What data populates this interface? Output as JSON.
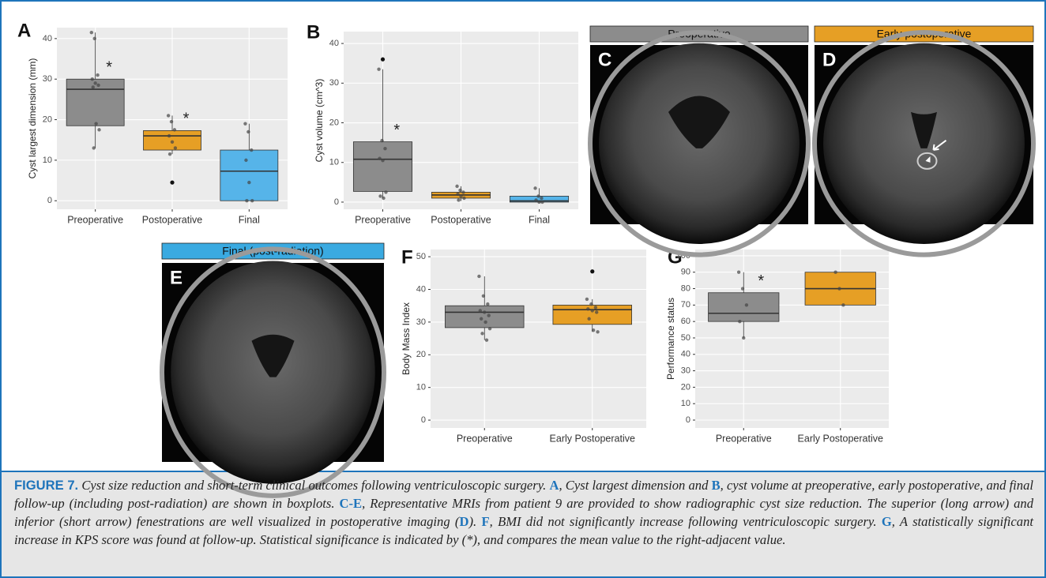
{
  "chart_data": [
    {
      "type": "box",
      "panel": "A",
      "ylabel": "Cyst largest dimension (mm)",
      "categories": [
        "Preoperative",
        "Postoperative",
        "Final"
      ],
      "boxes": [
        {
          "color": "#8c8c8c",
          "min": 13,
          "q1": 18.5,
          "median": 27.5,
          "q3": 30,
          "max": 41.5,
          "outliers": [],
          "points": [
            41.5,
            40,
            31,
            30,
            29,
            28.5,
            28,
            19,
            17.5,
            13
          ]
        },
        {
          "color": "#e69f25",
          "min": 11.5,
          "q1": 12.5,
          "median": 16,
          "q3": 17.3,
          "max": 21,
          "outliers": [
            4.5
          ],
          "points": [
            21,
            19.5,
            17.5,
            16,
            14.5,
            13,
            11.5
          ]
        },
        {
          "color": "#56b4e9",
          "min": 0,
          "q1": 0,
          "median": 7.3,
          "q3": 12.5,
          "max": 19,
          "outliers": [],
          "points": [
            19,
            17,
            12.5,
            10,
            4.5,
            0,
            0
          ]
        }
      ],
      "annotations": [
        "*",
        "*",
        null
      ],
      "ylim": [
        -2.1,
        42.7
      ],
      "yticks": [
        0,
        10,
        20,
        30,
        40
      ],
      "grid": true
    },
    {
      "type": "box",
      "panel": "B",
      "ylabel": "Cyst volume (cm^3)",
      "categories": [
        "Preoperative",
        "Postoperative",
        "Final"
      ],
      "boxes": [
        {
          "color": "#8c8c8c",
          "min": 1,
          "q1": 2.7,
          "median": 10.8,
          "q3": 15.2,
          "max": 33.5,
          "outliers": [
            36
          ],
          "points": [
            33.5,
            15.5,
            13.5,
            11,
            10.5,
            2.5,
            1.5,
            1
          ]
        },
        {
          "color": "#e69f25",
          "min": 0.3,
          "q1": 1,
          "median": 1.8,
          "q3": 2.5,
          "max": 4,
          "outliers": [],
          "points": [
            4,
            3,
            2.5,
            2,
            1.5,
            1,
            0.5
          ]
        },
        {
          "color": "#56b4e9",
          "min": 0,
          "q1": 0,
          "median": 0.3,
          "q3": 1.5,
          "max": 3.5,
          "outliers": [],
          "points": [
            3.5,
            1.5,
            1,
            0.5,
            0,
            0
          ]
        }
      ],
      "annotations": [
        "*",
        null,
        null
      ],
      "ylim": [
        -1.8,
        43
      ],
      "yticks": [
        0,
        10,
        20,
        30,
        40
      ],
      "grid": true
    },
    {
      "type": "box",
      "panel": "F",
      "ylabel": "Body Mass Index",
      "categories": [
        "Preoperative",
        "Early Postoperative"
      ],
      "boxes": [
        {
          "color": "#8c8c8c",
          "min": 24.5,
          "q1": 28.3,
          "median": 33,
          "q3": 35,
          "max": 44,
          "outliers": [],
          "points": [
            44,
            38,
            35.5,
            33.5,
            33,
            32,
            31,
            30,
            28,
            26.5,
            24.5
          ]
        },
        {
          "color": "#e69f25",
          "min": 27,
          "q1": 29.3,
          "median": 33.8,
          "q3": 35.2,
          "max": 37,
          "outliers": [
            45.5
          ],
          "points": [
            37,
            35.5,
            34.5,
            34,
            33.5,
            33,
            31,
            27.5,
            27
          ]
        }
      ],
      "annotations": [
        null,
        null
      ],
      "ylim": [
        -2.4,
        52.2
      ],
      "yticks": [
        0,
        10,
        20,
        30,
        40,
        50
      ],
      "grid": true
    },
    {
      "type": "box",
      "panel": "G",
      "ylabel": "Performance status",
      "categories": [
        "Preoperative",
        "Early Postoperative"
      ],
      "boxes": [
        {
          "color": "#8c8c8c",
          "min": 50,
          "q1": 60,
          "median": 65,
          "q3": 77.5,
          "max": 90,
          "outliers": [],
          "points": [
            90,
            80,
            70,
            60,
            50
          ]
        },
        {
          "color": "#e69f25",
          "min": 70,
          "q1": 70,
          "median": 80,
          "q3": 90,
          "max": 90,
          "outliers": [],
          "points": [
            90,
            80,
            70
          ]
        }
      ],
      "annotations": [
        "*",
        null
      ],
      "ylim": [
        -4.8,
        103.8
      ],
      "yticks": [
        0,
        10,
        20,
        30,
        40,
        50,
        60,
        70,
        80,
        90,
        100
      ],
      "grid": true
    }
  ],
  "images": [
    {
      "panel": "C",
      "title": "Preoperative",
      "color": "#8c8c8c"
    },
    {
      "panel": "D",
      "title": "Early postoperative",
      "color": "#e69f25"
    },
    {
      "panel": "E",
      "title": "Final (post-radiation)",
      "color": "#3aaae1"
    }
  ],
  "caption": [
    {
      "text": "FIGURE 7.",
      "style": "fig"
    },
    {
      "text": " Cyst size reduction and short-term clinical outcomes following ventriculoscopic surgery. ",
      "style": "text"
    },
    {
      "text": "A",
      "style": "ref"
    },
    {
      "text": ", Cyst largest dimension and ",
      "style": "text"
    },
    {
      "text": "B",
      "style": "ref"
    },
    {
      "text": ", cyst volume at preoperative, early postoperative, and final follow-up (including post-radiation) are shown in boxplots. ",
      "style": "text"
    },
    {
      "text": "C-E",
      "style": "ref"
    },
    {
      "text": ", Representative MRIs from patient 9 are provided to show radiographic cyst size reduction. The superior (long arrow) and inferior (short arrow) fenestrations are well visualized in postoperative imaging (",
      "style": "text"
    },
    {
      "text": "D",
      "style": "ref"
    },
    {
      "text": "). ",
      "style": "text"
    },
    {
      "text": "F",
      "style": "ref"
    },
    {
      "text": ", BMI did not significantly increase following ventriculoscopic surgery. ",
      "style": "text"
    },
    {
      "text": "G",
      "style": "ref"
    },
    {
      "text": ", A statistically significant increase in KPS score was found at follow-up. Statistical significance is indicated by (*), and compares the mean value to the right-adjacent value.",
      "style": "text"
    }
  ]
}
